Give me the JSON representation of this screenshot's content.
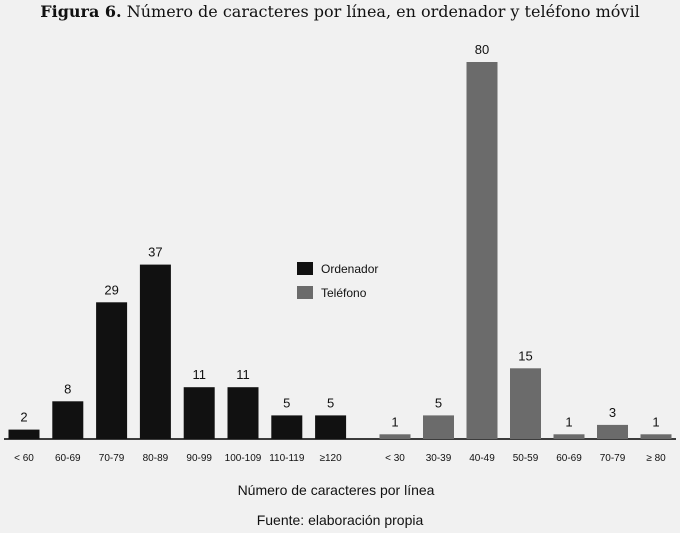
{
  "figure": {
    "label": "Figura 6.",
    "title": "Número de caracteres por línea, en ordenador y teléfono móvil",
    "source": "Fuente: elaboración propia"
  },
  "chart_data": {
    "type": "bar",
    "title": "Número de caracteres por línea, en ordenador y teléfono móvil",
    "xlabel": "Número de caracteres por línea",
    "ylabel": "",
    "ylim": [
      0,
      80
    ],
    "grid": false,
    "legend": "center",
    "series": [
      {
        "name": "Ordenador",
        "color": "#111111",
        "categories": [
          "< 60",
          "60-69",
          "70-79",
          "80-89",
          "90-99",
          "100-109",
          "110-119",
          "≥120"
        ],
        "values": [
          2,
          8,
          29,
          37,
          11,
          11,
          5,
          5
        ]
      },
      {
        "name": "Teléfono",
        "color": "#6b6b6b",
        "categories": [
          "< 30",
          "30-39",
          "40-49",
          "50-59",
          "60-69",
          "70-79",
          "≥ 80"
        ],
        "values": [
          1,
          5,
          80,
          15,
          1,
          3,
          1
        ]
      }
    ]
  }
}
